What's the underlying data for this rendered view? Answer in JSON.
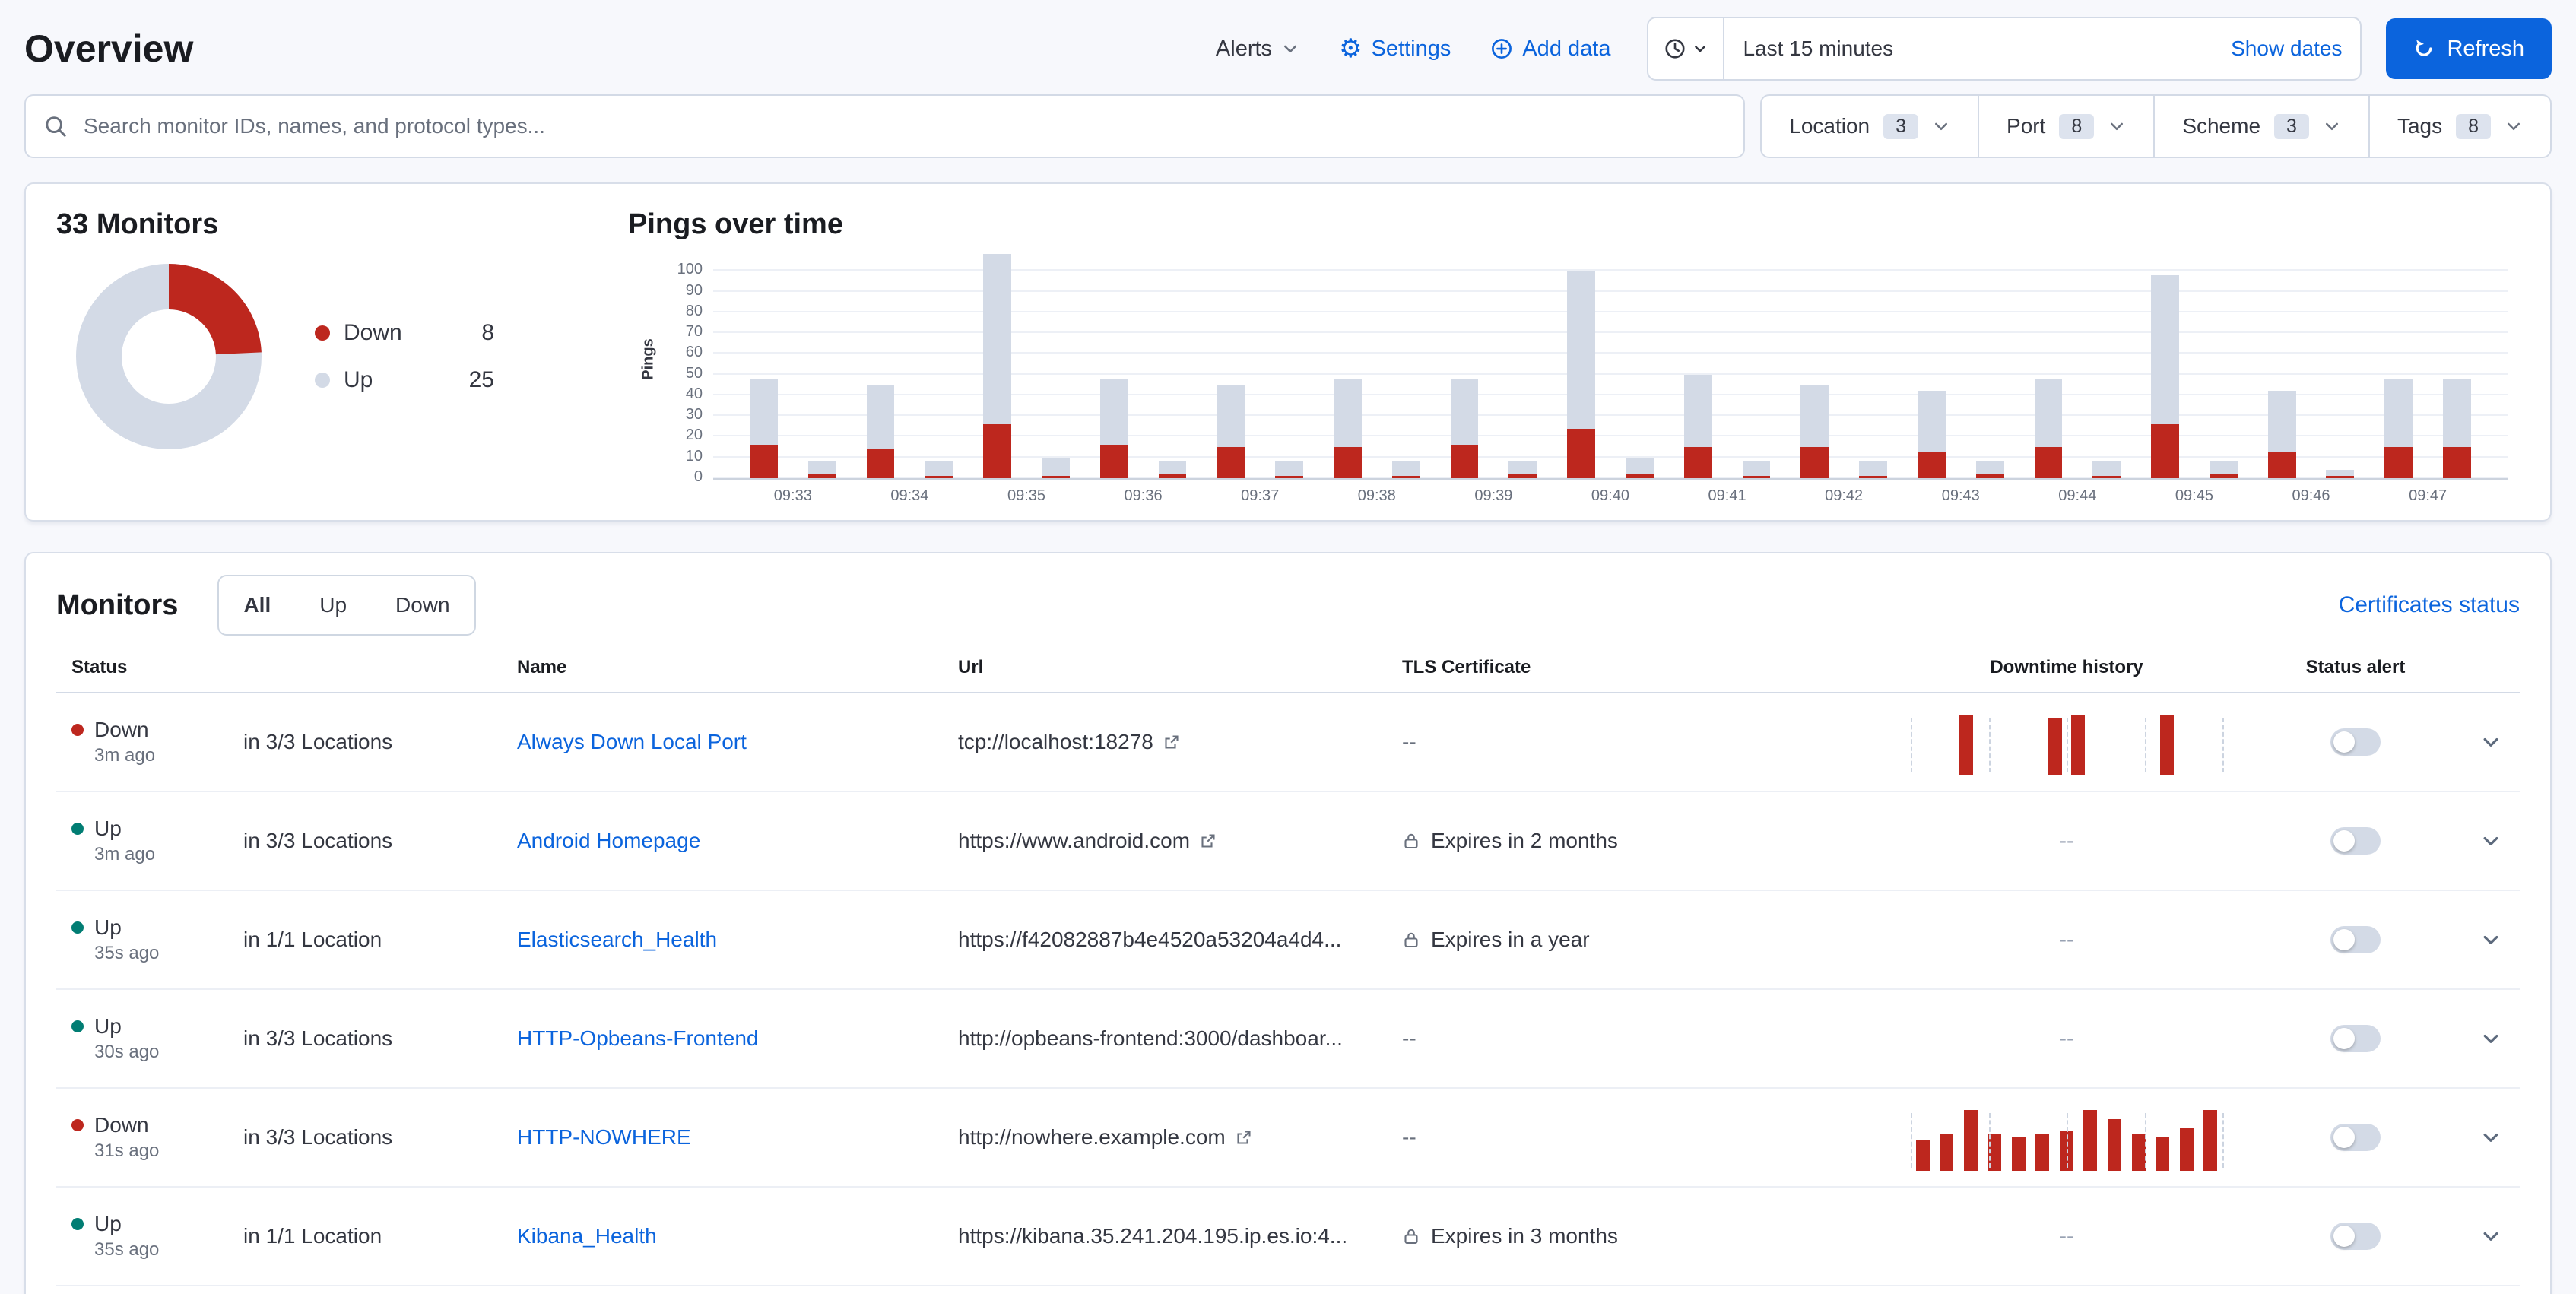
{
  "header": {
    "title": "Overview",
    "alerts_label": "Alerts",
    "settings_label": "Settings",
    "add_data_label": "Add data"
  },
  "time_picker": {
    "range_label": "Last 15 minutes",
    "show_dates_label": "Show dates",
    "refresh_label": "Refresh"
  },
  "search": {
    "placeholder": "Search monitor IDs, names, and protocol types..."
  },
  "filters": [
    {
      "label": "Location",
      "count": "3"
    },
    {
      "label": "Port",
      "count": "8"
    },
    {
      "label": "Scheme",
      "count": "3"
    },
    {
      "label": "Tags",
      "count": "8"
    }
  ],
  "summary": {
    "title": "33 Monitors",
    "legend": [
      {
        "label": "Down",
        "value": "8"
      },
      {
        "label": "Up",
        "value": "25"
      }
    ]
  },
  "chart_data": [
    {
      "type": "pie",
      "title": "33 Monitors",
      "labels": [
        "Down",
        "Up"
      ],
      "values": [
        8,
        25
      ],
      "colors": [
        "#bd271e",
        "#d3dae6"
      ],
      "hole": 0.5,
      "legend_position": "right"
    },
    {
      "type": "bar",
      "stacked": true,
      "title": "Pings over time",
      "ylabel": "Pings",
      "xlabel": "",
      "ylim": [
        0,
        110
      ],
      "yticks": [
        0,
        10,
        20,
        30,
        40,
        50,
        60,
        70,
        80,
        90,
        100
      ],
      "grid": true,
      "legend_position": "none",
      "categories": [
        "09:33",
        "09:34",
        "09:35",
        "09:36",
        "09:37",
        "09:38",
        "09:39",
        "09:40",
        "09:41",
        "09:42",
        "09:43",
        "09:44",
        "09:45",
        "09:46",
        "09:47"
      ],
      "bars_per_category": 2,
      "series": [
        {
          "name": "Down",
          "color": "#bd271e",
          "values": [
            16,
            2,
            14,
            1,
            26,
            1,
            16,
            2,
            15,
            1,
            15,
            1,
            16,
            2,
            24,
            2,
            15,
            1,
            15,
            1,
            13,
            2,
            15,
            1,
            26,
            2,
            13,
            1,
            15,
            15
          ]
        },
        {
          "name": "Up",
          "color": "#d3dae6",
          "values": [
            32,
            6,
            31,
            7,
            82,
            9,
            32,
            6,
            30,
            7,
            33,
            7,
            32,
            6,
            76,
            8,
            35,
            7,
            30,
            7,
            29,
            6,
            33,
            7,
            72,
            6,
            29,
            3,
            33,
            33
          ]
        }
      ]
    }
  ],
  "monitors": {
    "heading": "Monitors",
    "tabs": [
      "All",
      "Up",
      "Down"
    ],
    "active_tab": "All",
    "certificates_link": "Certificates status",
    "columns": [
      "Status",
      "",
      "Name",
      "Url",
      "TLS Certificate",
      "Downtime history",
      "Status alert",
      ""
    ],
    "status_colors": {
      "Down": "#bd271e",
      "Up": "#017d73"
    },
    "rows": [
      {
        "status": "Down",
        "ago": "3m ago",
        "locations": "in 3/3 Locations",
        "name": "Always Down Local Port",
        "url": "tcp://localhost:18278",
        "url_external": true,
        "tls": "--",
        "tls_lock": false,
        "downtime": [
          0,
          0,
          1,
          0,
          0,
          0,
          0.95,
          1,
          0,
          0,
          0,
          1,
          0,
          0
        ],
        "alert_on": false
      },
      {
        "status": "Up",
        "ago": "3m ago",
        "locations": "in 3/3 Locations",
        "name": "Android Homepage",
        "url": "https://www.android.com",
        "url_external": true,
        "tls": "Expires in 2 months",
        "tls_lock": true,
        "downtime": "--",
        "alert_on": false
      },
      {
        "status": "Up",
        "ago": "35s ago",
        "locations": "in 1/1 Location",
        "name": "Elasticsearch_Health",
        "url": "https://f42082887b4e4520a53204a4d4...",
        "url_external": false,
        "tls": "Expires in a year",
        "tls_lock": true,
        "downtime": "--",
        "alert_on": false
      },
      {
        "status": "Up",
        "ago": "30s ago",
        "locations": "in 3/3 Locations",
        "name": "HTTP-Opbeans-Frontend",
        "url": "http://opbeans-frontend:3000/dashboar...",
        "url_external": false,
        "tls": "--",
        "tls_lock": false,
        "downtime": "--",
        "alert_on": false
      },
      {
        "status": "Down",
        "ago": "31s ago",
        "locations": "in 3/3 Locations",
        "name": "HTTP-NOWHERE",
        "url": "http://nowhere.example.com",
        "url_external": true,
        "tls": "--",
        "tls_lock": false,
        "downtime": [
          0.5,
          0.6,
          1,
          0.6,
          0.55,
          0.6,
          0.65,
          1,
          0.85,
          0.6,
          0.55,
          0.7,
          1
        ],
        "alert_on": false
      },
      {
        "status": "Up",
        "ago": "35s ago",
        "locations": "in 1/1 Location",
        "name": "Kibana_Health",
        "url": "https://kibana.35.241.204.195.ip.es.io:4...",
        "url_external": false,
        "tls": "Expires in 3 months",
        "tls_lock": true,
        "downtime": "--",
        "alert_on": false
      }
    ]
  }
}
